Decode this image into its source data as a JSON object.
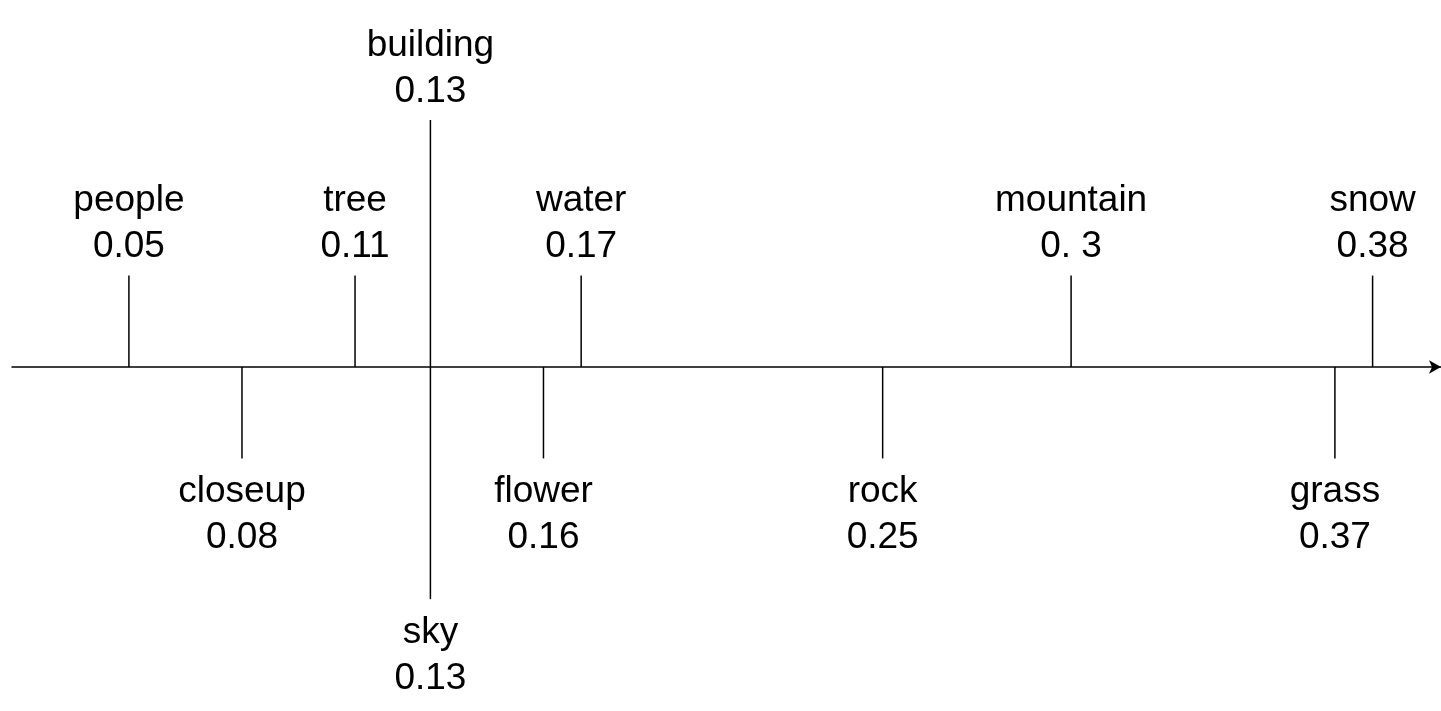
{
  "chart_data": {
    "type": "other",
    "categories": [
      "people",
      "closeup",
      "tree",
      "building",
      "sky",
      "water",
      "flower",
      "rock",
      "mountain",
      "grass",
      "snow"
    ],
    "values": [
      0.05,
      0.08,
      0.11,
      0.13,
      0.13,
      0.17,
      0.16,
      0.25,
      0.3,
      0.37,
      0.38
    ],
    "value_labels": [
      "0.05",
      "0.08",
      "0.11",
      "0.13",
      "0.13",
      "0.17",
      "0.16",
      "0.25",
      "0. 3",
      "0.37",
      "0.38"
    ],
    "color": "#000000"
  }
}
